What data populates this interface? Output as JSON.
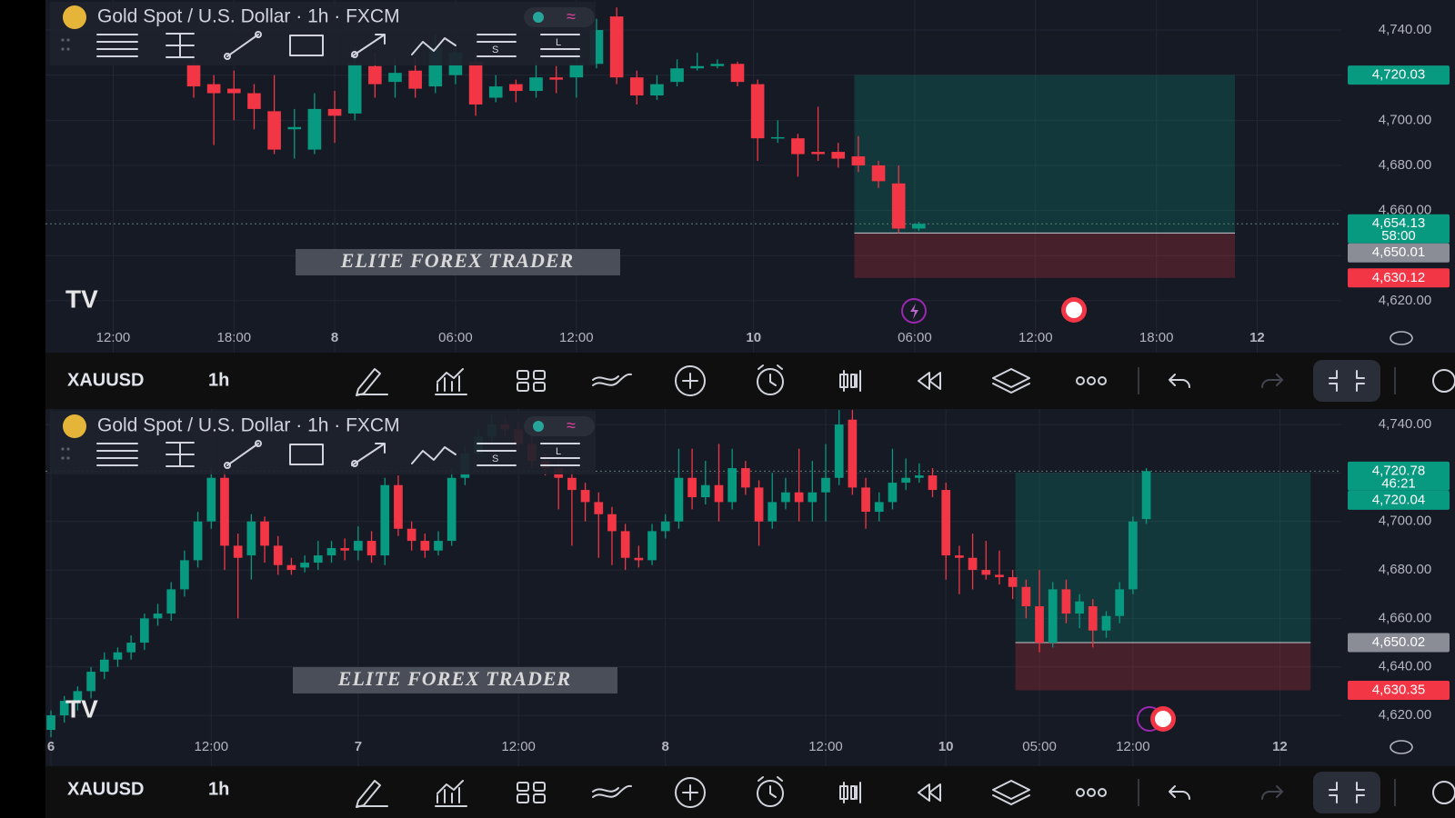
{
  "chart_data": [
    {
      "type": "candlestick",
      "title": "Gold Spot / U.S. Dollar · 1h · FXCM",
      "symbol": "XAUUSD",
      "interval": "1h",
      "watermark": "ELITE FOREX TRADER",
      "up_color": "#089981",
      "down_color": "#f23645",
      "grid": true,
      "ylim": [
        4610.3,
        4753.3
      ],
      "yticks": [
        {
          "value": 4620,
          "label": "4,620.00"
        },
        {
          "value": 4640,
          "label": "4,640.00"
        },
        {
          "value": 4660,
          "label": "4,660.00"
        },
        {
          "value": 4680,
          "label": "4,680.00"
        },
        {
          "value": 4700,
          "label": "4,700.00"
        },
        {
          "value": 4720,
          "label": "4,720.00"
        },
        {
          "value": 4740,
          "label": "4,740.00"
        }
      ],
      "xlim": [
        -7.36,
        56.98
      ],
      "xticks": [
        {
          "value": -4,
          "label": "12:00"
        },
        {
          "value": 2,
          "label": "18:00"
        },
        {
          "value": 7,
          "label": "8"
        },
        {
          "value": 13,
          "label": "06:00"
        },
        {
          "value": 19,
          "label": "12:00"
        },
        {
          "value": 27.8,
          "label": "10"
        },
        {
          "value": 35.8,
          "label": "06:00"
        },
        {
          "value": 41.8,
          "label": "12:00"
        },
        {
          "value": 47.8,
          "label": "18:00"
        },
        {
          "value": 52.8,
          "label": "12"
        }
      ],
      "ohlc": [
        [
          4725,
          4730,
          4710,
          4715
        ],
        [
          4716,
          4720,
          4689,
          4712
        ],
        [
          4714,
          4722,
          4700,
          4712
        ],
        [
          4712,
          4716,
          4696,
          4705
        ],
        [
          4704,
          4720,
          4685,
          4687
        ],
        [
          4696,
          4705,
          4683,
          4697
        ],
        [
          4687,
          4712,
          4685,
          4705
        ],
        [
          4705,
          4713,
          4690,
          4702
        ],
        [
          4703,
          4732,
          4700,
          4725
        ],
        [
          4724,
          4730,
          4710,
          4716
        ],
        [
          4717,
          4727,
          4710,
          4721
        ],
        [
          4722,
          4728,
          4710,
          4714
        ],
        [
          4715,
          4738,
          4712,
          4732
        ],
        [
          4720,
          4735,
          4716,
          4730
        ],
        [
          4726,
          4730,
          4702,
          4707
        ],
        [
          4710,
          4720,
          4708,
          4715
        ],
        [
          4716,
          4718,
          4708,
          4713
        ],
        [
          4713,
          4726,
          4710,
          4719
        ],
        [
          4719,
          4724,
          4712,
          4718
        ],
        [
          4719,
          4730,
          4710,
          4725
        ],
        [
          4725,
          4745,
          4723,
          4740
        ],
        [
          4746,
          4750,
          4716,
          4719
        ],
        [
          4719,
          4722,
          4707,
          4711
        ],
        [
          4711,
          4720,
          4709,
          4716
        ],
        [
          4717,
          4727,
          4715,
          4723
        ],
        [
          4723,
          4730,
          4722,
          4724
        ],
        [
          4724,
          4727,
          4723,
          4725
        ],
        [
          4725,
          4726,
          4715,
          4717
        ],
        [
          4716,
          4718,
          4682,
          4692
        ],
        [
          4692,
          4700,
          4690,
          4692.5
        ],
        [
          4692,
          4694,
          4675,
          4685
        ],
        [
          4686,
          4706,
          4682,
          4685
        ],
        [
          4686,
          4690,
          4679,
          4683
        ],
        [
          4684,
          4693,
          4677,
          4680
        ],
        [
          4680,
          4682,
          4670,
          4673
        ],
        [
          4672,
          4680,
          4650,
          4652
        ],
        [
          4652,
          4655,
          4651,
          4654.13
        ]
      ],
      "position": {
        "start": 32.8,
        "end": 51.7,
        "target": 4720.03,
        "entry": 4650.01,
        "stop": 4630.12
      },
      "current": {
        "value": 4654.13,
        "label": "4,654.13",
        "countdown": "58:00",
        "color": "#089981"
      },
      "price_labels": [
        {
          "value": 4720.03,
          "label": "4,720.03",
          "color": "#089981"
        },
        {
          "value": 4650.01,
          "label": "4,650.01",
          "color": "#8a8d96"
        },
        {
          "value": 4630.12,
          "label": "4,630.12",
          "color": "#f23645"
        }
      ]
    },
    {
      "type": "candlestick",
      "title": "Gold Spot / U.S. Dollar · 1h · FXCM",
      "symbol": "XAUUSD",
      "interval": "1h",
      "watermark": "ELITE FOREX TRADER",
      "up_color": "#089981",
      "down_color": "#f23645",
      "grid": true,
      "ylim": [
        4612.9,
        4746.4
      ],
      "yticks": [
        {
          "value": 4620,
          "label": "4,620.00"
        },
        {
          "value": 4640,
          "label": "4,640.00"
        },
        {
          "value": 4660,
          "label": "4,660.00"
        },
        {
          "value": 4680,
          "label": "4,680.00"
        },
        {
          "value": 4700,
          "label": "4,700.00"
        },
        {
          "value": 4720,
          "label": "4,720.00"
        },
        {
          "value": 4740,
          "label": "4,740.00"
        }
      ],
      "xlim": [
        -0.41,
        96.6
      ],
      "xticks": [
        {
          "value": 0,
          "label": "6"
        },
        {
          "value": 12,
          "label": "12:00"
        },
        {
          "value": 23,
          "label": "7"
        },
        {
          "value": 35,
          "label": "12:00"
        },
        {
          "value": 46,
          "label": "8"
        },
        {
          "value": 58,
          "label": "12:00"
        },
        {
          "value": 67,
          "label": "10"
        },
        {
          "value": 74,
          "label": "05:00"
        },
        {
          "value": 81,
          "label": "12:00"
        },
        {
          "value": 92,
          "label": "12"
        }
      ],
      "ohlc": [
        [
          4614,
          4622,
          4611,
          4620
        ],
        [
          4620,
          4628,
          4617,
          4626
        ],
        [
          4626,
          4632,
          4622,
          4630
        ],
        [
          4630,
          4640,
          4627,
          4638
        ],
        [
          4638,
          4646,
          4635,
          4643
        ],
        [
          4643,
          4648,
          4640,
          4646
        ],
        [
          4646,
          4653,
          4643,
          4650
        ],
        [
          4650,
          4662,
          4647,
          4660
        ],
        [
          4660,
          4666,
          4657,
          4662
        ],
        [
          4662,
          4675,
          4659,
          4672
        ],
        [
          4672,
          4688,
          4669,
          4684
        ],
        [
          4684,
          4704,
          4681,
          4700
        ],
        [
          4700,
          4722,
          4697,
          4718
        ],
        [
          4718,
          4721,
          4680,
          4690
        ],
        [
          4690,
          4695,
          4660,
          4685
        ],
        [
          4686,
          4703,
          4676,
          4700
        ],
        [
          4700,
          4702,
          4683,
          4690
        ],
        [
          4690,
          4694,
          4678,
          4682
        ],
        [
          4682,
          4685,
          4678,
          4680
        ],
        [
          4681,
          4686,
          4679,
          4683
        ],
        [
          4683,
          4692,
          4680,
          4686
        ],
        [
          4686,
          4692,
          4683,
          4689
        ],
        [
          4689,
          4693,
          4684,
          4688
        ],
        [
          4688,
          4698,
          4684,
          4692
        ],
        [
          4692,
          4696,
          4683,
          4686
        ],
        [
          4686,
          4718,
          4682,
          4715
        ],
        [
          4715,
          4719,
          4694,
          4697
        ],
        [
          4697,
          4700,
          4688,
          4692
        ],
        [
          4692,
          4695,
          4685,
          4688
        ],
        [
          4688,
          4696,
          4686,
          4692
        ],
        [
          4692,
          4722,
          4690,
          4718
        ],
        [
          4718,
          4731,
          4715,
          4728
        ],
        [
          4728,
          4738,
          4725,
          4735
        ],
        [
          4735,
          4744,
          4732,
          4740
        ],
        [
          4740,
          4743,
          4735,
          4738
        ],
        [
          4738,
          4741,
          4729,
          4732
        ],
        [
          4732,
          4735,
          4722,
          4725
        ],
        [
          4725,
          4728,
          4719,
          4722
        ],
        [
          4722,
          4725,
          4705,
          4718
        ],
        [
          4718,
          4722,
          4690,
          4713
        ],
        [
          4713,
          4716,
          4700,
          4708
        ],
        [
          4708,
          4712,
          4685,
          4703
        ],
        [
          4703,
          4706,
          4682,
          4696
        ],
        [
          4696,
          4699,
          4680,
          4685
        ],
        [
          4685,
          4690,
          4681,
          4684
        ],
        [
          4684,
          4699,
          4682,
          4696
        ],
        [
          4696,
          4703,
          4693,
          4700
        ],
        [
          4700,
          4730,
          4697,
          4718
        ],
        [
          4718,
          4730,
          4705,
          4710
        ],
        [
          4710,
          4725,
          4707,
          4715
        ],
        [
          4715,
          4732,
          4700,
          4708
        ],
        [
          4708,
          4730,
          4705,
          4722
        ],
        [
          4722,
          4725,
          4711,
          4714
        ],
        [
          4714,
          4717,
          4690,
          4700
        ],
        [
          4700,
          4720,
          4697,
          4708
        ],
        [
          4708,
          4718,
          4705,
          4712
        ],
        [
          4712,
          4730,
          4700,
          4708
        ],
        [
          4708,
          4725,
          4700,
          4712
        ],
        [
          4712,
          4732,
          4700,
          4718
        ],
        [
          4718,
          4746,
          4715,
          4740
        ],
        [
          4742,
          4746,
          4711,
          4714
        ],
        [
          4714,
          4718,
          4697,
          4704
        ],
        [
          4704,
          4712,
          4700,
          4708
        ],
        [
          4708,
          4730,
          4705,
          4716
        ],
        [
          4716,
          4726,
          4713,
          4718
        ],
        [
          4718,
          4724,
          4716,
          4719
        ],
        [
          4719,
          4722,
          4710,
          4713
        ],
        [
          4713,
          4716,
          4676,
          4686
        ],
        [
          4686,
          4690,
          4670,
          4685
        ],
        [
          4685,
          4695,
          4672,
          4680
        ],
        [
          4680,
          4692,
          4676,
          4678
        ],
        [
          4678,
          4688,
          4674,
          4677
        ],
        [
          4677,
          4680,
          4668,
          4673
        ],
        [
          4673,
          4676,
          4660,
          4665
        ],
        [
          4665,
          4680,
          4646,
          4650
        ],
        [
          4650,
          4675,
          4648,
          4672
        ],
        [
          4672,
          4676,
          4658,
          4662
        ],
        [
          4662,
          4670,
          4656,
          4667
        ],
        [
          4665,
          4668,
          4648,
          4655
        ],
        [
          4655,
          4663,
          4652,
          4661
        ],
        [
          4661,
          4675,
          4658,
          4672
        ],
        [
          4672,
          4702,
          4670,
          4700
        ],
        [
          4701,
          4722,
          4699,
          4720.78
        ]
      ],
      "position": {
        "start": 72.2,
        "end": 94.3,
        "target": 4720.04,
        "entry": 4650.02,
        "stop": 4630.35
      },
      "current": {
        "value": 4720.78,
        "label": "4,720.78",
        "countdown": "46:21",
        "color": "#089981"
      },
      "price_labels": [
        {
          "value": 4720.04,
          "label": "4,720.04",
          "color": "#089981"
        },
        {
          "value": 4650.02,
          "label": "4,650.02",
          "color": "#8a8d96"
        },
        {
          "value": 4630.35,
          "label": "4,630.35",
          "color": "#f23645"
        }
      ]
    }
  ]
}
